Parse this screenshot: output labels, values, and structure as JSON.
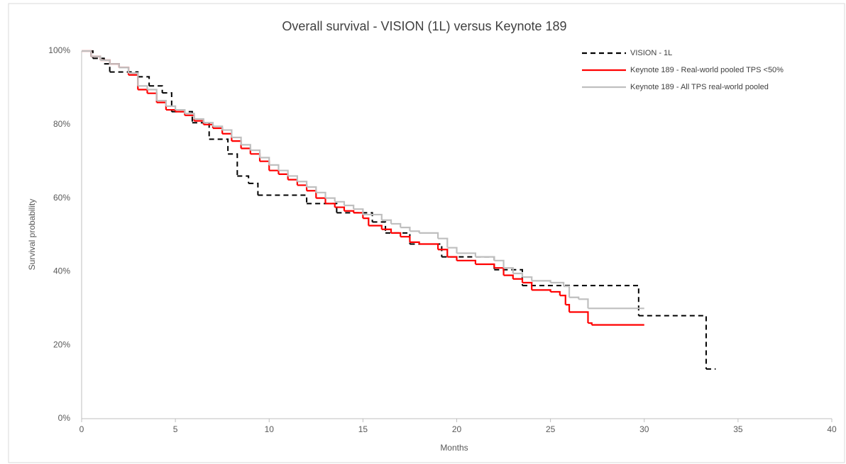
{
  "chart_data": {
    "type": "step",
    "title": "Overall survival - VISION (1L) versus Keynote 189",
    "x_label": "Months",
    "y_label": "Survival probability",
    "xlim": [
      0,
      40
    ],
    "xticks": [
      0,
      5,
      10,
      15,
      20,
      25,
      30,
      35,
      40
    ],
    "ylim": [
      0,
      100
    ],
    "yticks": [
      {
        "value": 0,
        "label": "0%"
      },
      {
        "value": 20,
        "label": "20%"
      },
      {
        "value": 40,
        "label": "40%"
      },
      {
        "value": 60,
        "label": "60%"
      },
      {
        "value": 80,
        "label": "80%"
      },
      {
        "value": 100,
        "label": "100%"
      }
    ],
    "grid": false,
    "legend": "top-right",
    "series": [
      {
        "name": "VISION - 1L",
        "color": "#000000",
        "dash": true,
        "x": [
          0,
          0.6,
          1.2,
          1.5,
          3,
          3.6,
          4.3,
          4.8,
          5.9,
          6.8,
          7.8,
          8.3,
          8.9,
          9.4,
          12,
          13.6,
          15.5,
          16.2,
          17.5,
          19.2,
          22,
          23.5,
          29.7,
          33.3,
          33.8
        ],
        "values": [
          100,
          98,
          96.5,
          94.3,
          93,
          90.5,
          88.6,
          83.5,
          80.5,
          76,
          72,
          66,
          64,
          60.8,
          58.5,
          56,
          53.5,
          50.5,
          47.5,
          44,
          40.5,
          36.2,
          28,
          13.5,
          13.5
        ]
      },
      {
        "name": "Keynote 189 - Real-world pooled TPS <50%",
        "color": "#ff0000",
        "dash": false,
        "x": [
          0,
          0.5,
          1,
          1.5,
          2,
          2.5,
          3,
          3.5,
          4,
          4.5,
          5,
          5.5,
          6,
          6.5,
          7,
          7.5,
          8,
          8.5,
          9,
          9.5,
          10,
          10.5,
          11,
          11.5,
          12,
          12.5,
          13,
          13.5,
          14,
          14.5,
          15,
          15.3,
          16,
          16.5,
          17,
          17.5,
          18,
          19,
          19.5,
          20,
          21,
          22,
          22.5,
          23,
          23.5,
          24,
          25,
          25.5,
          25.8,
          26,
          27,
          27.2,
          30
        ],
        "values": [
          100,
          98.5,
          97.5,
          96.5,
          95.5,
          93.5,
          89.5,
          88.5,
          86,
          84,
          83.5,
          82.5,
          81,
          80,
          79,
          77.5,
          75.5,
          73.5,
          72,
          70,
          67.5,
          66.5,
          65,
          63.5,
          62,
          60,
          58.5,
          57.5,
          56.5,
          56,
          54.5,
          52.5,
          51.5,
          50.5,
          49.5,
          48,
          47.5,
          46,
          44,
          43,
          42,
          41,
          39,
          38,
          37,
          35,
          34.5,
          33.5,
          31,
          29,
          26,
          25.5,
          25.5
        ]
      },
      {
        "name": "Keynote 189 - All TPS real-world pooled",
        "color": "#bfbfbf",
        "dash": false,
        "x": [
          0,
          0.5,
          1,
          1.5,
          2,
          2.5,
          3,
          3.5,
          4,
          4.5,
          5,
          5.5,
          6,
          6.5,
          7,
          7.5,
          8,
          8.5,
          9,
          9.5,
          10,
          10.5,
          11,
          11.5,
          12,
          12.5,
          13,
          13.5,
          14,
          14.5,
          15,
          16,
          16.5,
          17,
          17.5,
          18,
          19,
          19.5,
          20,
          21,
          22,
          22.5,
          23,
          23.5,
          24,
          25,
          25.7,
          26,
          26.5,
          27,
          30
        ],
        "values": [
          100,
          98.5,
          97.5,
          96.5,
          95.5,
          94,
          90.5,
          89.5,
          86.5,
          85,
          84,
          83,
          81.5,
          80.5,
          79.5,
          78.5,
          76.5,
          74.5,
          73,
          71,
          69,
          67.5,
          66,
          64.5,
          63,
          61.5,
          60,
          59,
          58,
          57,
          55.5,
          54,
          53,
          52,
          51,
          50.5,
          49,
          46.5,
          45,
          44,
          43,
          41,
          39.5,
          38.5,
          37.5,
          37,
          36,
          33,
          32.5,
          30,
          30
        ]
      }
    ]
  }
}
